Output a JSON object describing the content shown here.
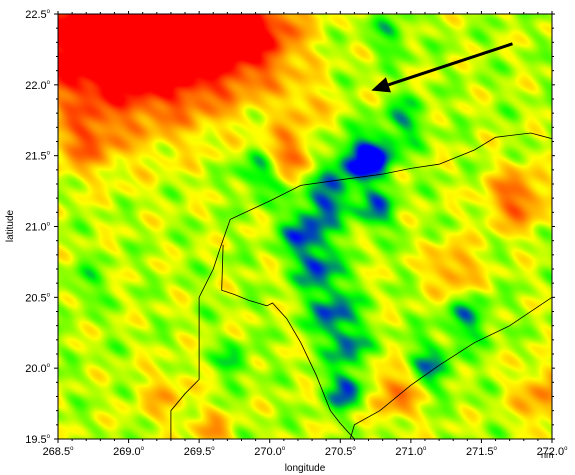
{
  "map": {
    "x_ticks": [
      {
        "text": "268.5",
        "deg": "o"
      },
      {
        "text": "269.0",
        "deg": "o"
      },
      {
        "text": "269.5",
        "deg": "o"
      },
      {
        "text": "270.0",
        "deg": "o"
      },
      {
        "text": "270.5",
        "deg": "o"
      },
      {
        "text": "271.0",
        "deg": "o"
      },
      {
        "text": "271.5",
        "deg": "o"
      },
      {
        "text": "272.0",
        "deg": "o"
      }
    ],
    "y_ticks": [
      {
        "text": "19.5",
        "deg": "o"
      },
      {
        "text": "20.0",
        "deg": "o"
      },
      {
        "text": "20.5",
        "deg": "o"
      },
      {
        "text": "21.0",
        "deg": "o"
      },
      {
        "text": "21.5",
        "deg": "o"
      },
      {
        "text": "22.0",
        "deg": "o"
      },
      {
        "text": "22.5",
        "deg": "o"
      }
    ],
    "xlabel": "longitude",
    "ylabel": "latitude",
    "corner_mark": "nm",
    "xlim": [
      268.5,
      272.0
    ],
    "ylim": [
      19.5,
      22.5
    ],
    "colormap": [
      "#0000ff",
      "#00ff00",
      "#ffff00",
      "#ff8000",
      "#ff0000"
    ],
    "coastline_color": "#000000",
    "arrow": {
      "from": [
        271.72,
        22.29
      ],
      "to": [
        270.72,
        21.96
      ],
      "color": "#000000"
    },
    "coastline": [
      [
        268.5,
        19.5
      ],
      [
        269.3,
        19.5
      ],
      [
        269.3,
        19.7
      ],
      [
        269.4,
        19.82
      ],
      [
        269.5,
        19.92
      ],
      [
        269.5,
        20.5
      ],
      [
        269.6,
        20.7
      ],
      [
        269.65,
        20.85
      ],
      [
        269.72,
        21.05
      ],
      [
        270.0,
        21.18
      ],
      [
        270.22,
        21.29
      ],
      [
        270.5,
        21.33
      ],
      [
        270.8,
        21.37
      ],
      [
        271.0,
        21.41
      ],
      [
        271.2,
        21.44
      ],
      [
        271.45,
        21.54
      ],
      [
        271.6,
        21.63
      ],
      [
        271.85,
        21.66
      ],
      [
        272.0,
        21.62
      ]
    ],
    "inland_boundary": [
      [
        269.67,
        20.87
      ],
      [
        269.66,
        20.55
      ],
      [
        269.75,
        20.52
      ],
      [
        269.85,
        20.48
      ],
      [
        269.98,
        20.44
      ],
      [
        270.02,
        20.46
      ],
      [
        270.12,
        20.35
      ],
      [
        270.22,
        20.18
      ],
      [
        270.33,
        19.95
      ],
      [
        270.43,
        19.7
      ],
      [
        270.5,
        19.61
      ],
      [
        270.6,
        19.5
      ]
    ],
    "east_boundary": [
      [
        270.57,
        19.5
      ],
      [
        270.6,
        19.6
      ],
      [
        270.78,
        19.7
      ],
      [
        271.0,
        19.88
      ],
      [
        271.2,
        20.02
      ],
      [
        271.45,
        20.18
      ],
      [
        271.7,
        20.3
      ],
      [
        272.0,
        20.5
      ]
    ],
    "field_features": [
      {
        "x": 268.9,
        "y": 22.45,
        "v": 0.92,
        "r": 0.5
      },
      {
        "x": 269.2,
        "y": 22.3,
        "v": 0.8,
        "r": 0.35
      },
      {
        "x": 269.6,
        "y": 22.4,
        "v": 0.85,
        "r": 0.32
      },
      {
        "x": 268.7,
        "y": 22.25,
        "v": 0.75,
        "r": 0.22
      },
      {
        "x": 269.95,
        "y": 22.35,
        "v": 0.72,
        "r": 0.22
      },
      {
        "x": 270.1,
        "y": 21.5,
        "v": 0.85,
        "r": 0.12
      },
      {
        "x": 271.75,
        "y": 21.2,
        "v": 0.82,
        "r": 0.15
      },
      {
        "x": 271.3,
        "y": 20.7,
        "v": 0.72,
        "r": 0.13
      },
      {
        "x": 270.9,
        "y": 19.85,
        "v": 0.8,
        "r": 0.14
      },
      {
        "x": 269.25,
        "y": 19.8,
        "v": 0.62,
        "r": 0.14
      },
      {
        "x": 268.7,
        "y": 21.6,
        "v": 0.7,
        "r": 0.15
      },
      {
        "x": 269.6,
        "y": 19.55,
        "v": 0.68,
        "r": 0.1
      },
      {
        "x": 271.95,
        "y": 19.8,
        "v": 0.72,
        "r": 0.15
      },
      {
        "x": 270.25,
        "y": 21.85,
        "v": 0.6,
        "r": 0.13
      },
      {
        "x": 270.6,
        "y": 21.45,
        "v": 0.12,
        "r": 0.13
      },
      {
        "x": 270.75,
        "y": 21.5,
        "v": 0.06,
        "r": 0.1
      },
      {
        "x": 270.4,
        "y": 21.2,
        "v": 0.12,
        "r": 0.12
      },
      {
        "x": 270.75,
        "y": 21.12,
        "v": 0.14,
        "r": 0.1
      },
      {
        "x": 270.25,
        "y": 20.95,
        "v": 0.08,
        "r": 0.12
      },
      {
        "x": 270.35,
        "y": 20.7,
        "v": 0.1,
        "r": 0.11
      },
      {
        "x": 270.45,
        "y": 20.4,
        "v": 0.08,
        "r": 0.12
      },
      {
        "x": 270.55,
        "y": 20.15,
        "v": 0.12,
        "r": 0.1
      },
      {
        "x": 270.55,
        "y": 19.85,
        "v": 0.05,
        "r": 0.1
      },
      {
        "x": 269.95,
        "y": 21.4,
        "v": 0.1,
        "r": 0.12
      },
      {
        "x": 271.1,
        "y": 20.0,
        "v": 0.12,
        "r": 0.13
      },
      {
        "x": 271.4,
        "y": 20.35,
        "v": 0.18,
        "r": 0.12
      },
      {
        "x": 270.95,
        "y": 21.75,
        "v": 0.2,
        "r": 0.11
      },
      {
        "x": 270.85,
        "y": 22.35,
        "v": 0.25,
        "r": 0.1
      },
      {
        "x": 269.75,
        "y": 20.05,
        "v": 0.2,
        "r": 0.08
      },
      {
        "x": 268.7,
        "y": 20.6,
        "v": 0.3,
        "r": 0.1
      }
    ]
  }
}
